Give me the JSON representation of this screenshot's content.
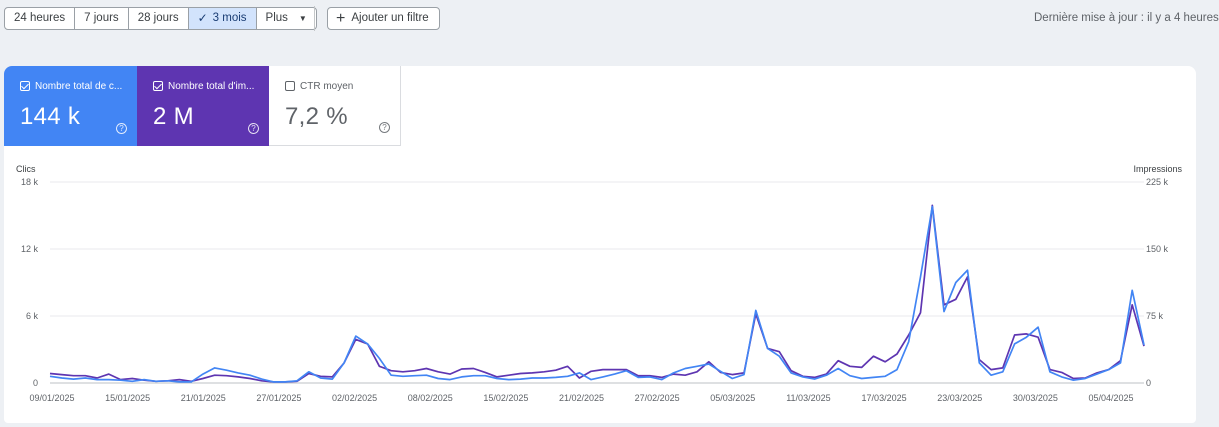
{
  "toolbar": {
    "ranges": [
      {
        "label": "24 heures",
        "active": false
      },
      {
        "label": "7 jours",
        "active": false
      },
      {
        "label": "28 jours",
        "active": false
      },
      {
        "label": "3 mois",
        "active": true
      },
      {
        "label": "Plus",
        "active": false
      }
    ],
    "add_filter_label": "Ajouter un filtre",
    "last_update": "Dernière mise à jour : il y a 4 heures"
  },
  "metrics": {
    "clicks": {
      "label": "Nombre total de c...",
      "value": "144 k",
      "checked": true,
      "color": "#4285f4"
    },
    "impressions": {
      "label": "Nombre total d'im...",
      "value": "2 M",
      "checked": true,
      "color": "#5e35b1"
    },
    "ctr": {
      "label": "CTR moyen",
      "value": "7,2 %",
      "checked": false
    }
  },
  "chart_data": {
    "type": "line",
    "x_labels": [
      "09/01/2025",
      "15/01/2025",
      "21/01/2025",
      "27/01/2025",
      "02/02/2025",
      "08/02/2025",
      "15/02/2025",
      "21/02/2025",
      "27/02/2025",
      "05/03/2025",
      "11/03/2025",
      "17/03/2025",
      "23/03/2025",
      "30/03/2025",
      "05/04/2025"
    ],
    "left_axis": {
      "title": "Clics",
      "ticks": [
        "0",
        "6 k",
        "12 k",
        "18 k"
      ],
      "max": 18000
    },
    "right_axis": {
      "title": "Impressions",
      "ticks": [
        "0",
        "75 k",
        "150 k",
        "225 k"
      ],
      "max": 225000
    },
    "grid": true,
    "series": [
      {
        "name": "Clics",
        "axis": "left",
        "color": "#4285f4",
        "values": [
          600,
          450,
          350,
          450,
          300,
          300,
          250,
          150,
          300,
          150,
          200,
          100,
          100,
          800,
          1350,
          1150,
          900,
          700,
          350,
          100,
          100,
          200,
          1000,
          450,
          350,
          1800,
          4200,
          3500,
          2200,
          700,
          600,
          650,
          700,
          400,
          300,
          550,
          650,
          650,
          400,
          300,
          350,
          450,
          450,
          500,
          600,
          900,
          300,
          550,
          800,
          1100,
          500,
          550,
          300,
          900,
          1300,
          1500,
          1700,
          1050,
          400,
          750,
          6500,
          3100,
          2400,
          900,
          550,
          350,
          700,
          1300,
          650,
          400,
          500,
          600,
          1200,
          3700,
          9500,
          15800,
          6400,
          9000,
          10100,
          1800,
          700,
          1000,
          3500,
          4100,
          5000,
          1000,
          550,
          250,
          400,
          800,
          1200,
          1800,
          8300,
          3400
        ]
      },
      {
        "name": "Impressions",
        "axis": "left",
        "color": "#5e35b1",
        "values": [
          850,
          750,
          650,
          650,
          450,
          800,
          300,
          400,
          250,
          150,
          200,
          300,
          150,
          400,
          700,
          650,
          550,
          400,
          200,
          100,
          100,
          150,
          850,
          600,
          550,
          1800,
          3900,
          3500,
          1500,
          1100,
          1000,
          1100,
          1300,
          1000,
          800,
          1250,
          1300,
          950,
          550,
          700,
          850,
          900,
          1000,
          1150,
          1500,
          450,
          1050,
          1200,
          1200,
          1200,
          650,
          650,
          500,
          800,
          700,
          1000,
          1900,
          950,
          750,
          900,
          6200,
          3100,
          2800,
          1100,
          600,
          500,
          800,
          2000,
          1500,
          1400,
          2400,
          1900,
          2600,
          4300,
          6300,
          15900,
          7000,
          7500,
          9500,
          2100,
          1200,
          1350,
          4300,
          4400,
          4100,
          1200,
          950,
          400,
          450,
          900,
          1200,
          2000,
          7000,
          3300
        ]
      }
    ]
  }
}
